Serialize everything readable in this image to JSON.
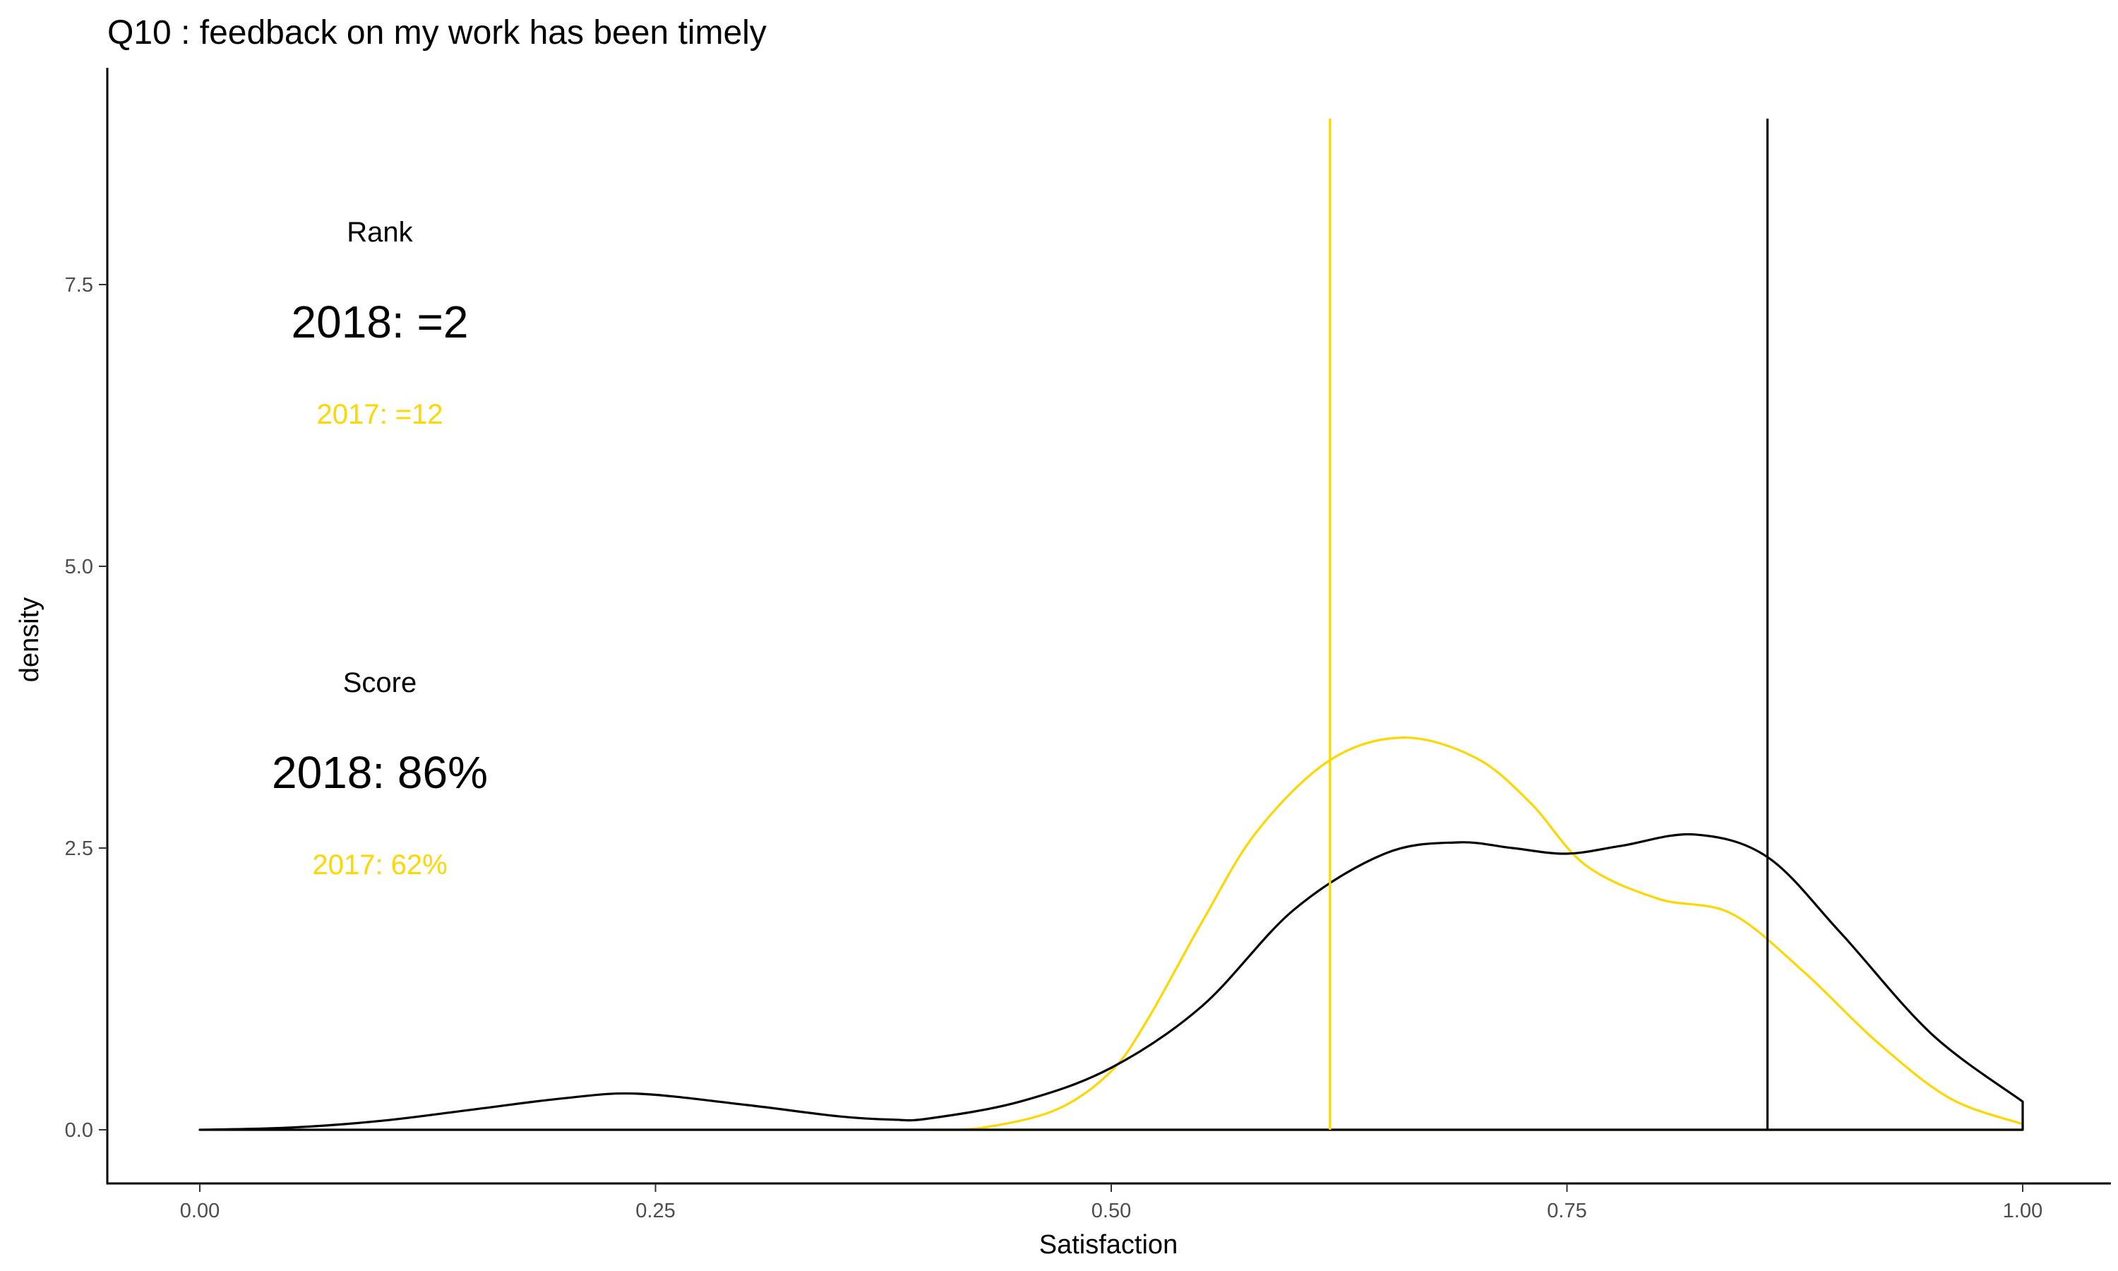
{
  "chart_data": {
    "type": "area",
    "title": "Q10 :   feedback on my work has been timely",
    "xlabel": "Satisfaction",
    "ylabel": "density",
    "xlim": [
      0.0,
      1.0
    ],
    "ylim": [
      0.0,
      9.0
    ],
    "xticks": [
      0.0,
      0.25,
      0.5,
      0.75,
      1.0
    ],
    "xtick_labels": [
      "0.00",
      "0.25",
      "0.50",
      "0.75",
      "1.00"
    ],
    "yticks": [
      0.0,
      2.5,
      5.0,
      7.5
    ],
    "ytick_labels": [
      "0.0",
      "2.5",
      "5.0",
      "7.5"
    ],
    "grid": false,
    "colors": {
      "y2018": "#000000",
      "y2017": "#FFD700"
    },
    "series": [
      {
        "color": "#000000",
        "x": [
          0.0,
          0.05,
          0.1,
          0.15,
          0.2,
          0.24,
          0.3,
          0.35,
          0.38,
          0.4,
          0.45,
          0.5,
          0.55,
          0.6,
          0.65,
          0.69,
          0.72,
          0.75,
          0.78,
          0.82,
          0.86,
          0.9,
          0.95,
          1.0
        ],
        "y": [
          0.0,
          0.02,
          0.08,
          0.18,
          0.28,
          0.32,
          0.22,
          0.12,
          0.09,
          0.1,
          0.25,
          0.55,
          1.1,
          1.95,
          2.45,
          2.55,
          2.5,
          2.45,
          2.52,
          2.62,
          2.42,
          1.75,
          0.85,
          0.25
        ]
      },
      {
        "color": "#FFD700",
        "x": [
          0.4,
          0.43,
          0.47,
          0.5,
          0.52,
          0.55,
          0.58,
          0.62,
          0.66,
          0.7,
          0.73,
          0.76,
          0.8,
          0.84,
          0.88,
          0.92,
          0.96,
          1.0
        ],
        "y": [
          0.0,
          0.02,
          0.18,
          0.52,
          0.98,
          1.85,
          2.65,
          3.28,
          3.48,
          3.3,
          2.9,
          2.35,
          2.05,
          1.92,
          1.4,
          0.78,
          0.28,
          0.05
        ]
      }
    ],
    "reference_lines": [
      {
        "x": 0.86,
        "color": "#000000"
      },
      {
        "x": 0.62,
        "color": "#FFD700"
      }
    ],
    "annotations": {
      "rank_heading": "Rank",
      "rank_2018": "2018: =2",
      "rank_2017": "2017: =12",
      "score_heading": "Score",
      "score_2018": "2018: 86%",
      "score_2017": "2017: 62%"
    }
  }
}
